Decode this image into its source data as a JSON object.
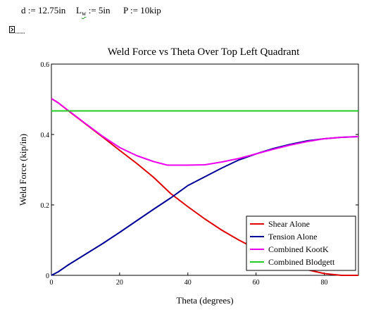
{
  "variables": {
    "d": "d := 12.75in",
    "L_prefix": "L",
    "L_sub": "w",
    "L_suffix": ":= 5in",
    "P": "P := 10kip"
  },
  "collapse_icon": "collapsed-region-icon",
  "colors": {
    "shear": "#e00000",
    "tension": "#000099",
    "kootk": "#ee00ee",
    "blodgett": "#22cc22",
    "axis": "#000000"
  },
  "chart_data": {
    "type": "line",
    "title": "Weld Force vs Theta Over Top Left Quadrant",
    "xlabel": "Theta (degrees)",
    "ylabel": "Weld Force (kip/in)",
    "xlim": [
      0,
      90
    ],
    "ylim": [
      0,
      0.6
    ],
    "x_ticks": [
      0,
      20,
      40,
      60,
      80
    ],
    "y_ticks": [
      0,
      0.2,
      0.4,
      0.6
    ],
    "x_tick_labels": [
      "0",
      "20",
      "40",
      "60",
      "80"
    ],
    "y_tick_labels": [
      "0",
      "0.2",
      "0.4",
      "0.6"
    ],
    "grid": false,
    "legend_position": "bottom-right",
    "series": [
      {
        "name": "Shear Alone",
        "color": "#e00000",
        "x": [
          0,
          2,
          5,
          10,
          15,
          20,
          25,
          30,
          35,
          40,
          45,
          50,
          55,
          60,
          65,
          70,
          75,
          80,
          85,
          90
        ],
        "y": [
          0.502,
          0.49,
          0.467,
          0.43,
          0.393,
          0.355,
          0.318,
          0.278,
          0.232,
          0.195,
          0.16,
          0.128,
          0.1,
          0.075,
          0.053,
          0.032,
          0.016,
          0.005,
          0.0,
          0.0
        ]
      },
      {
        "name": "Tension Alone",
        "color": "#000099",
        "x": [
          0,
          2,
          5,
          10,
          15,
          20,
          25,
          30,
          35,
          40,
          45,
          50,
          55,
          60,
          65,
          70,
          75,
          80,
          85,
          90
        ],
        "y": [
          0.0,
          0.01,
          0.03,
          0.06,
          0.09,
          0.122,
          0.155,
          0.188,
          0.22,
          0.255,
          0.28,
          0.305,
          0.328,
          0.345,
          0.36,
          0.372,
          0.382,
          0.388,
          0.392,
          0.394
        ]
      },
      {
        "name": "Combined KootK",
        "color": "#ee00ee",
        "x": [
          0,
          2,
          5,
          10,
          15,
          20,
          25,
          30,
          34,
          40,
          45,
          50,
          55,
          60,
          65,
          70,
          75,
          80,
          85,
          90
        ],
        "y": [
          0.502,
          0.49,
          0.468,
          0.431,
          0.395,
          0.363,
          0.34,
          0.323,
          0.313,
          0.313,
          0.314,
          0.322,
          0.332,
          0.345,
          0.358,
          0.37,
          0.38,
          0.388,
          0.392,
          0.394
        ]
      },
      {
        "name": "Combined Blodgett",
        "color": "#22cc22",
        "x": [
          0,
          90
        ],
        "y": [
          0.467,
          0.467
        ]
      }
    ]
  }
}
